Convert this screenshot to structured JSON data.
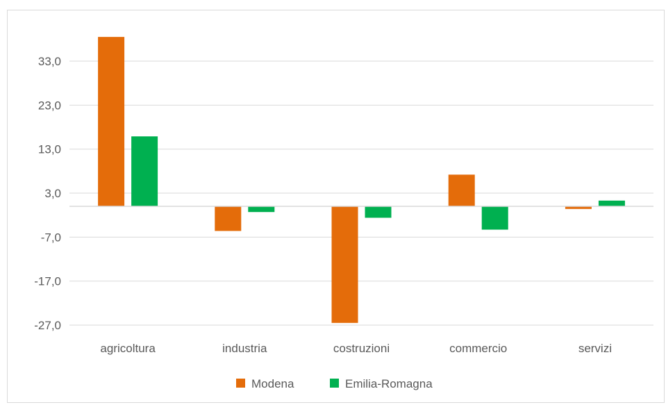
{
  "chart_data": {
    "type": "bar",
    "categories": [
      "agricoltura",
      "industria",
      "costruzioni",
      "commercio",
      "servizi"
    ],
    "series": [
      {
        "name": "Modena",
        "color": "#E46C0A",
        "values": [
          38.5,
          -5.6,
          -26.5,
          7.2,
          -0.6
        ]
      },
      {
        "name": "Emilia-Romagna",
        "color": "#00B050",
        "values": [
          15.9,
          -1.3,
          -2.6,
          -5.3,
          1.3
        ]
      }
    ],
    "y_ticks": [
      33.0,
      23.0,
      13.0,
      3.0,
      -7.0,
      -17.0,
      -27.0
    ],
    "y_tick_labels": [
      "33,0",
      "23,0",
      "13,0",
      "3,0",
      "-7,0",
      "-17,0",
      "-27,0"
    ],
    "ylim": [
      -27.0,
      40.0
    ],
    "grid": true,
    "legend_position": "bottom"
  }
}
